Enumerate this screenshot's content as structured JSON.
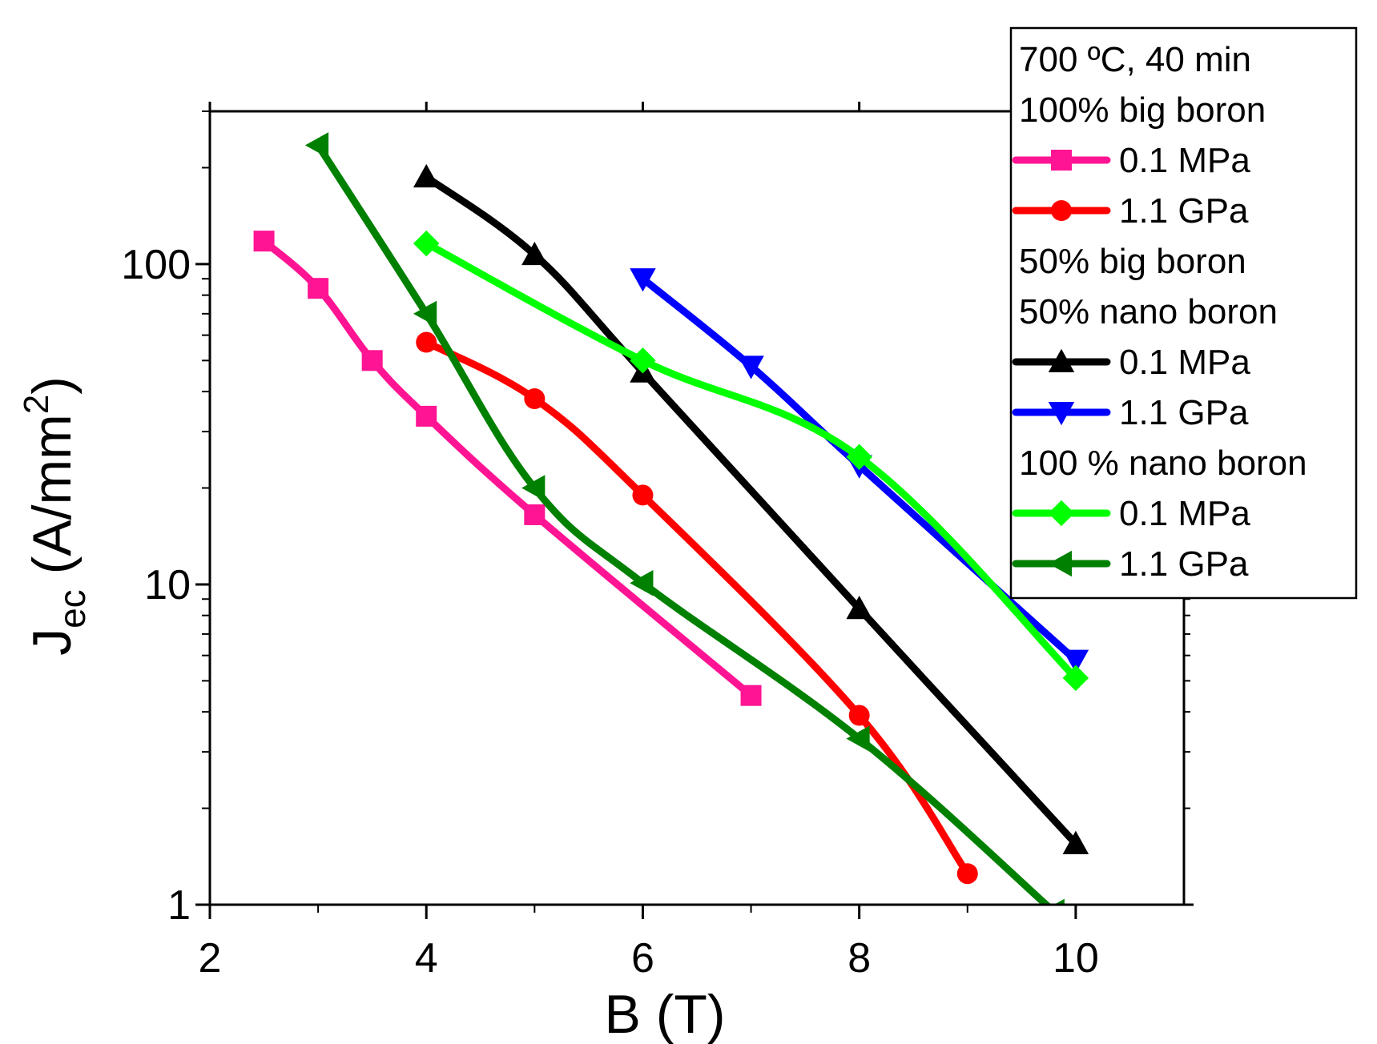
{
  "chart_data": {
    "type": "line",
    "title": "",
    "xlabel": "B (T)",
    "ylabel": {
      "main": "J",
      "sub": "ec",
      "unit_pre": " (A/mm",
      "sup": "2",
      "unit_post": ")"
    },
    "xlim": [
      2,
      11
    ],
    "ylim": [
      1,
      300
    ],
    "yscale": "log",
    "x_ticks": [
      2,
      4,
      6,
      8,
      10
    ],
    "x_tick_labels": [
      "2",
      "4",
      "6",
      "8",
      "10"
    ],
    "y_ticks": [
      1,
      10,
      100
    ],
    "y_tick_labels": [
      "1",
      "10",
      "100"
    ],
    "legend": {
      "placement": "top-right",
      "groups": [
        {
          "headers": [
            "700 ºC, 40 min",
            "100% big boron"
          ],
          "series": [
            0,
            1
          ]
        },
        {
          "headers": [
            "50% big boron",
            "50% nano boron"
          ],
          "series": [
            2,
            3
          ]
        },
        {
          "headers": [
            "100 % nano boron"
          ],
          "series": [
            4,
            5
          ]
        }
      ]
    },
    "series": [
      {
        "name": "0.1 MPa",
        "group": "100% big boron",
        "color": "#FF1493",
        "marker": "square",
        "x": [
          2.5,
          3.0,
          3.5,
          4.0,
          5.0,
          7.0
        ],
        "y": [
          118,
          84,
          50,
          33.5,
          16.5,
          4.5
        ]
      },
      {
        "name": "1.1 GPa",
        "group": "100% big boron",
        "color": "#FF0000",
        "marker": "circle",
        "x": [
          4.0,
          5.0,
          6.0,
          8.0,
          9.0
        ],
        "y": [
          57,
          38,
          19,
          3.9,
          1.25
        ]
      },
      {
        "name": "0.1 MPa",
        "group": "50% big boron 50% nano boron",
        "color": "#000000",
        "marker": "triangle-up",
        "x": [
          4.0,
          5.0,
          6.0,
          8.0,
          10.0
        ],
        "y": [
          187,
          107,
          46,
          8.4,
          1.55
        ]
      },
      {
        "name": "1.1 GPa",
        "group": "50% big boron 50% nano boron",
        "color": "#0000FF",
        "marker": "triangle-down",
        "x": [
          6.0,
          7.0,
          8.0,
          10.0
        ],
        "y": [
          90,
          48,
          23.5,
          5.8
        ]
      },
      {
        "name": "0.1 MPa",
        "group": "100 % nano boron",
        "color": "#00FF00",
        "marker": "diamond",
        "x": [
          4.0,
          6.0,
          8.0,
          10.0
        ],
        "y": [
          116,
          50,
          25,
          5.1
        ]
      },
      {
        "name": "1.1 GPa",
        "group": "100 % nano boron",
        "color": "#008000",
        "marker": "triangle-left",
        "x": [
          3.0,
          4.0,
          5.0,
          6.0,
          8.0,
          9.8
        ],
        "y": [
          235,
          70,
          20,
          10.1,
          3.3,
          0.95
        ]
      }
    ]
  }
}
